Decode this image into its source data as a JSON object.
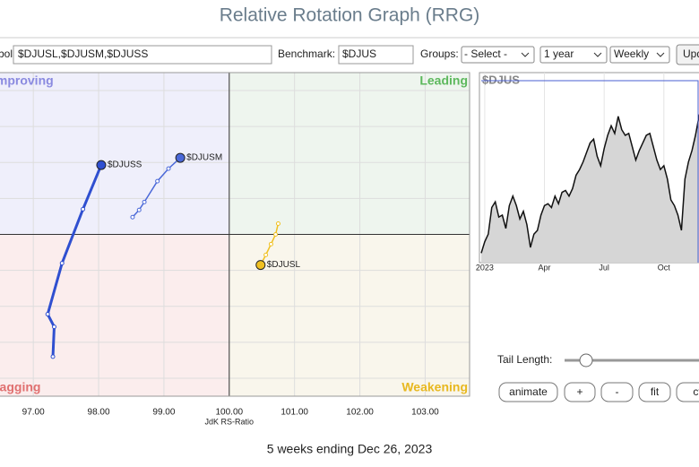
{
  "header": {
    "title": "Relative Rotation Graph (RRG)"
  },
  "controls": {
    "symbols_label": "Symbols:",
    "symbols": "$DJUSL,$DJUSM,$DJUSS",
    "benchmark_label": "Benchmark:",
    "benchmark": "$DJUS",
    "groups_label": "Groups:",
    "groups": "- Select -",
    "period": "1 year",
    "frequency": "Weekly",
    "update": "Update"
  },
  "chart_data": [
    {
      "type": "rrg",
      "xlabel": "JdK RS-Ratio",
      "xlim": [
        96.49,
        103.68
      ],
      "ylim": [
        95.5,
        104.5
      ],
      "center": [
        100,
        100
      ],
      "xticks": [
        {
          "value": 97,
          "label": "97.00"
        },
        {
          "value": 98,
          "label": "98.00"
        },
        {
          "value": 99,
          "label": "99.00"
        },
        {
          "value": 100,
          "label": "100.00"
        },
        {
          "value": 101,
          "label": "101.00"
        },
        {
          "value": 102,
          "label": "102.00"
        },
        {
          "value": 103,
          "label": "103.00"
        }
      ],
      "ygrid": [
        96,
        97,
        98,
        99,
        100,
        101,
        102,
        103,
        104
      ],
      "quadrants": [
        {
          "label": "Improving",
          "color": "#8a8ae0",
          "bg": "#efeffb"
        },
        {
          "label": "Leading",
          "color": "#5cb85c",
          "bg": "#eef5ee"
        },
        {
          "label": "Lagging",
          "color": "#e07070",
          "bg": "#fbeded"
        },
        {
          "label": "Weakening",
          "color": "#e8b820",
          "bg": "#f9f6ec"
        }
      ],
      "series": [
        {
          "name": "$DJUSL",
          "color": "#f0c020",
          "x": [
            100.75,
            100.71,
            100.64,
            100.56,
            100.48
          ],
          "values": [
            100.3,
            100,
            99.73,
            99.43,
            99.15
          ]
        },
        {
          "name": "$DJUSM",
          "color": "#4a68d8",
          "x": [
            98.52,
            98.62,
            98.7,
            98.9,
            99.07,
            99.25
          ],
          "values": [
            100.48,
            100.68,
            100.9,
            101.48,
            101.83,
            102.13
          ]
        },
        {
          "name": "$DJUSS",
          "color": "#2f4fd0",
          "x": [
            97.3,
            97.32,
            97.22,
            97.44,
            97.76,
            98.04
          ],
          "values": [
            96.6,
            97.43,
            97.78,
            99.2,
            100.7,
            101.93
          ]
        }
      ]
    },
    {
      "type": "line",
      "title": "$DJUS",
      "xlim": [
        0,
        62
      ],
      "ylim": [
        0,
        100
      ],
      "xticks": [
        {
          "value": 1,
          "label": "2023"
        },
        {
          "value": 18,
          "label": "Apr"
        },
        {
          "value": 35,
          "label": "Jul"
        },
        {
          "value": 52,
          "label": "Oct"
        }
      ],
      "values": [
        5,
        11,
        15,
        29,
        32,
        24,
        25,
        18,
        30,
        35,
        30,
        23,
        27,
        20,
        8,
        15,
        17,
        25,
        30,
        31,
        29,
        35,
        31,
        37,
        38,
        35,
        39,
        46,
        49,
        53,
        58,
        63,
        65,
        56,
        51,
        60,
        67,
        72,
        68,
        77,
        70,
        67,
        68,
        61,
        54,
        59,
        63,
        67,
        68,
        61,
        54,
        49,
        51,
        44,
        33,
        30,
        25,
        17,
        44,
        53,
        59,
        67,
        77,
        84
      ]
    }
  ],
  "tail_label": "Tail Length:",
  "buttons": [
    "animate",
    "+",
    "-",
    "fit",
    "ctr"
  ],
  "footer": "5 weeks ending Dec 26, 2023"
}
